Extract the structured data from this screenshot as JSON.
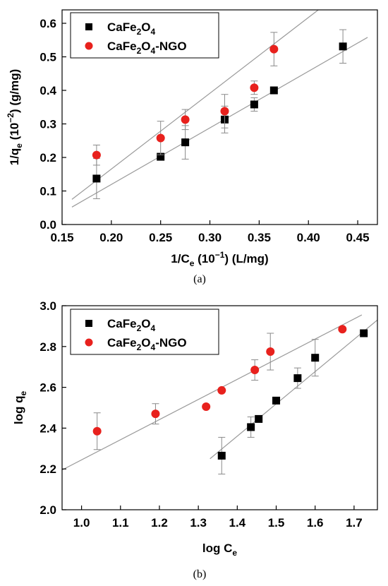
{
  "chart_data": [
    {
      "type": "scatter",
      "panel_caption": "(a)",
      "xlabel": {
        "pre": "1/C",
        "sub": "e",
        "post": " (10",
        "sup": "−1",
        "post2": ") (L/mg)"
      },
      "ylabel": {
        "pre": "1/q",
        "sub": "e",
        "post": " (10",
        "sup": "−2",
        "post2": ") (g/mg)"
      },
      "xlim": [
        0.15,
        0.47
      ],
      "ylim": [
        0.0,
        0.64
      ],
      "xticks": [
        "0.15",
        "0.20",
        "0.25",
        "0.30",
        "0.35",
        "0.40",
        "0.45"
      ],
      "xtick_values": [
        0.15,
        0.2,
        0.25,
        0.3,
        0.35,
        0.4,
        0.45
      ],
      "yticks": [
        "0.0",
        "0.1",
        "0.2",
        "0.3",
        "0.4",
        "0.5",
        "0.6"
      ],
      "ytick_values": [
        0.0,
        0.1,
        0.2,
        0.3,
        0.4,
        0.5,
        0.6
      ],
      "legend_position": "top-left",
      "series": [
        {
          "name_main": "CaFe",
          "name_sub1": "2",
          "name_mid": "O",
          "name_sub2": "4",
          "name_suffix": "",
          "marker": "square",
          "color": "#000000",
          "x": [
            0.185,
            0.25,
            0.275,
            0.315,
            0.345,
            0.365,
            0.435
          ],
          "y": [
            0.137,
            0.202,
            0.245,
            0.313,
            0.358,
            0.4,
            0.531
          ],
          "err": [
            0.06,
            0.0,
            0.05,
            0.04,
            0.02,
            0.0,
            0.05
          ],
          "fit": {
            "x": [
              0.16,
              0.46
            ],
            "y": [
              0.052,
              0.558
            ]
          }
        },
        {
          "name_main": "CaFe",
          "name_sub1": "2",
          "name_mid": "O",
          "name_sub2": "4",
          "name_suffix": "-NGO",
          "marker": "circle",
          "color": "#e8211d",
          "x": [
            0.185,
            0.25,
            0.275,
            0.315,
            0.345,
            0.365
          ],
          "y": [
            0.207,
            0.258,
            0.313,
            0.338,
            0.408,
            0.523
          ],
          "err": [
            0.03,
            0.05,
            0.03,
            0.05,
            0.02,
            0.05
          ],
          "fit": {
            "x": [
              0.16,
              0.41
            ],
            "y": [
              0.075,
              0.64
            ]
          }
        }
      ]
    },
    {
      "type": "scatter",
      "panel_caption": "(b)",
      "xlabel": {
        "pre": "log C",
        "sub": "e",
        "post": "",
        "sup": "",
        "post2": ""
      },
      "ylabel": {
        "pre": "log q",
        "sub": "e",
        "post": "",
        "sup": "",
        "post2": ""
      },
      "xlim": [
        0.95,
        1.76
      ],
      "ylim": [
        2.0,
        3.0
      ],
      "xticks": [
        "1.0",
        "1.1",
        "1.2",
        "1.3",
        "1.4",
        "1.5",
        "1.6",
        "1.7"
      ],
      "xtick_values": [
        1.0,
        1.1,
        1.2,
        1.3,
        1.4,
        1.5,
        1.6,
        1.7
      ],
      "yticks": [
        "2.0",
        "2.2",
        "2.4",
        "2.6",
        "2.8",
        "3.0"
      ],
      "ytick_values": [
        2.0,
        2.2,
        2.4,
        2.6,
        2.8,
        3.0
      ],
      "legend_position": "top-left",
      "series": [
        {
          "name_main": "CaFe",
          "name_sub1": "2",
          "name_mid": "O",
          "name_sub2": "4",
          "name_suffix": "",
          "marker": "square",
          "color": "#000000",
          "x": [
            1.36,
            1.435,
            1.455,
            1.5,
            1.555,
            1.6,
            1.725
          ],
          "y": [
            2.265,
            2.405,
            2.445,
            2.535,
            2.645,
            2.745,
            2.865
          ],
          "err": [
            0.09,
            0.05,
            0.0,
            0.0,
            0.05,
            0.09,
            0.0
          ],
          "fit": {
            "x": [
              1.33,
              1.76
            ],
            "y": [
              2.25,
              2.93
            ]
          }
        },
        {
          "name_main": "CaFe",
          "name_sub1": "2",
          "name_mid": "O",
          "name_sub2": "4",
          "name_suffix": "-NGO",
          "marker": "circle",
          "color": "#e8211d",
          "x": [
            1.04,
            1.19,
            1.32,
            1.36,
            1.445,
            1.485,
            1.67
          ],
          "y": [
            2.385,
            2.47,
            2.505,
            2.585,
            2.685,
            2.775,
            2.885
          ],
          "err": [
            0.09,
            0.05,
            0.0,
            0.0,
            0.05,
            0.09,
            0.0
          ],
          "fit": {
            "x": [
              0.95,
              1.72
            ],
            "y": [
              2.195,
              2.955
            ]
          }
        }
      ]
    }
  ]
}
